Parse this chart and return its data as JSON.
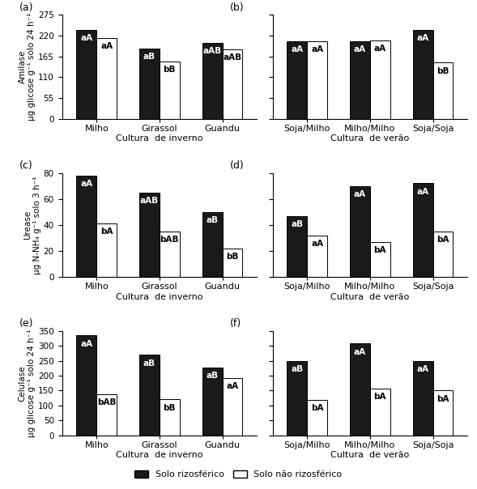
{
  "panels": {
    "a": {
      "label": "(a)",
      "categories": [
        "Milho",
        "Girassol",
        "Guandu"
      ],
      "xlabel": "Cultura  de inverno",
      "rizos": [
        235,
        185,
        200
      ],
      "nrizos": [
        213,
        152,
        183
      ],
      "labels_rizos": [
        "aA",
        "aB",
        "aAB"
      ],
      "labels_nrizos": [
        "aA",
        "bB",
        "aAB"
      ],
      "ylabel": "Amilase\nµg glicose g⁻¹ solo 24 h⁻¹",
      "show_yticklabels": true,
      "ylim": [
        0,
        275
      ],
      "yticks": [
        0,
        55,
        110,
        165,
        220,
        275
      ]
    },
    "b": {
      "label": "(b)",
      "categories": [
        "Soja/Milho",
        "Milho/Milho",
        "Soja/Soja"
      ],
      "xlabel": "Cultura  de verão",
      "rizos": [
        205,
        205,
        235
      ],
      "nrizos": [
        205,
        207,
        148
      ],
      "labels_rizos": [
        "aA",
        "aA",
        "aA"
      ],
      "labels_nrizos": [
        "aA",
        "aA",
        "bB"
      ],
      "ylabel": "",
      "show_yticklabels": false,
      "ylim": [
        0,
        275
      ],
      "yticks": [
        0,
        55,
        110,
        165,
        220,
        275
      ]
    },
    "c": {
      "label": "(c)",
      "categories": [
        "Milho",
        "Girassol",
        "Guandu"
      ],
      "xlabel": "Cultura  de inverno",
      "rizos": [
        78,
        65,
        50
      ],
      "nrizos": [
        41,
        35,
        22
      ],
      "labels_rizos": [
        "aA",
        "aAB",
        "aB"
      ],
      "labels_nrizos": [
        "bA",
        "bAB",
        "bB"
      ],
      "ylabel": "Urease\nµg N-NH₄ g⁻¹ solo 3 h⁻¹",
      "show_yticklabels": true,
      "ylim": [
        0,
        80
      ],
      "yticks": [
        0,
        20,
        40,
        60,
        80
      ]
    },
    "d": {
      "label": "(d)",
      "categories": [
        "Soja/Milho",
        "Milho/Milho",
        "Soja/Soja"
      ],
      "xlabel": "Cultura  de verão",
      "rizos": [
        47,
        70,
        72
      ],
      "nrizos": [
        32,
        27,
        35
      ],
      "labels_rizos": [
        "aB",
        "aA",
        "aA"
      ],
      "labels_nrizos": [
        "aA",
        "bA",
        "bA"
      ],
      "ylabel": "",
      "show_yticklabels": false,
      "ylim": [
        0,
        80
      ],
      "yticks": [
        0,
        20,
        40,
        60,
        80
      ]
    },
    "e": {
      "label": "(e)",
      "categories": [
        "Milho",
        "Girassol",
        "Guandu"
      ],
      "xlabel": "Cultura  de inverno",
      "rizos": [
        335,
        270,
        228
      ],
      "nrizos": [
        138,
        120,
        192
      ],
      "labels_rizos": [
        "aA",
        "aB",
        "aB"
      ],
      "labels_nrizos": [
        "bAB",
        "bB",
        "aA"
      ],
      "ylabel": "Celulase\nµg glicose g⁻¹ solo 24 h⁻¹",
      "show_yticklabels": true,
      "ylim": [
        0,
        350
      ],
      "yticks": [
        0,
        50,
        100,
        150,
        200,
        250,
        300,
        350
      ]
    },
    "f": {
      "label": "(f)",
      "categories": [
        "Soja/Milho",
        "Milho/Milho",
        "Soja/Soja"
      ],
      "xlabel": "Cultura  de verão",
      "rizos": [
        250,
        308,
        250
      ],
      "nrizos": [
        118,
        158,
        150
      ],
      "labels_rizos": [
        "aB",
        "aA",
        "aA"
      ],
      "labels_nrizos": [
        "bA",
        "bA",
        "bA"
      ],
      "ylabel": "",
      "show_yticklabels": false,
      "ylim": [
        0,
        350
      ],
      "yticks": [
        0,
        50,
        100,
        150,
        200,
        250,
        300,
        350
      ]
    }
  },
  "bar_width": 0.32,
  "color_rizos": "#1a1a1a",
  "color_nrizos": "#ffffff",
  "edge_color": "#000000",
  "label_fontsize": 7.5,
  "tick_fontsize": 7.5,
  "ylabel_fontsize": 7.5,
  "xlabel_fontsize": 8,
  "legend_label_rizos": "Solo rizosférico",
  "legend_label_nrizos": "Solo não rizosférico"
}
